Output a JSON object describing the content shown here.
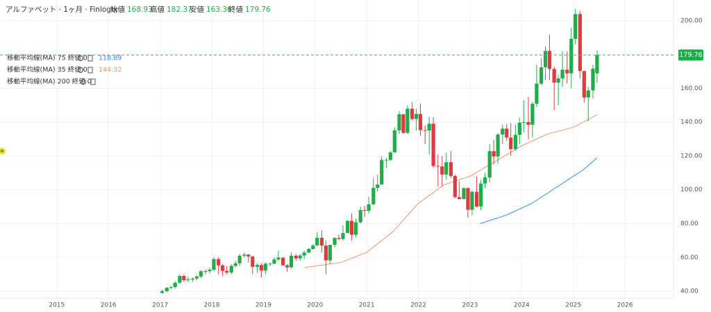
{
  "chart_data": {
    "type": "candlestick",
    "header": {
      "name": "アルファベット · 1ヶ月 · Finlogix",
      "open_label": "始値",
      "high_label": "高値",
      "low_label": "安値",
      "close_label": "終値"
    },
    "marker_label": "w",
    "xlim": [
      2013.9,
      2026.94
    ],
    "xticks": [
      2015,
      2016,
      2017,
      2018,
      2019,
      2020,
      2021,
      2022,
      2023,
      2024,
      2025,
      2026
    ],
    "ylim": [
      35.9,
      212.3
    ],
    "yticks": [
      {
        "value": 40,
        "label": "40.00"
      },
      {
        "value": 60,
        "label": "60.00"
      },
      {
        "value": 80,
        "label": "80.00"
      },
      {
        "value": 100,
        "label": "100.00"
      },
      {
        "value": 120,
        "label": "120.00"
      },
      {
        "value": 140,
        "label": "140.00"
      },
      {
        "value": 160,
        "label": "160.00"
      },
      {
        "value": 180,
        "label": "180.00"
      },
      {
        "value": 200,
        "label": "200.00"
      }
    ],
    "grid": true,
    "up_color": "#22ab4a",
    "down_color": "#e0393e",
    "candles": {
      "x": [
        2017.04,
        2017.13,
        2017.21,
        2017.29,
        2017.38,
        2017.46,
        2017.54,
        2017.63,
        2017.71,
        2017.79,
        2017.88,
        2017.96,
        2018.04,
        2018.13,
        2018.21,
        2018.29,
        2018.38,
        2018.46,
        2018.54,
        2018.63,
        2018.71,
        2018.79,
        2018.88,
        2018.96,
        2019.04,
        2019.13,
        2019.21,
        2019.29,
        2019.38,
        2019.46,
        2019.54,
        2019.63,
        2019.71,
        2019.79,
        2019.88,
        2019.96,
        2020.04,
        2020.13,
        2020.21,
        2020.29,
        2020.38,
        2020.46,
        2020.54,
        2020.63,
        2020.71,
        2020.79,
        2020.88,
        2020.96,
        2021.04,
        2021.13,
        2021.21,
        2021.29,
        2021.38,
        2021.46,
        2021.54,
        2021.63,
        2021.71,
        2021.79,
        2021.88,
        2021.96,
        2022.04,
        2022.13,
        2022.21,
        2022.29,
        2022.38,
        2022.46,
        2022.54,
        2022.63,
        2022.71,
        2022.79,
        2022.88,
        2022.96,
        2023.04,
        2023.13,
        2023.21,
        2023.29,
        2023.38,
        2023.46,
        2023.54,
        2023.63,
        2023.71,
        2023.79,
        2023.88,
        2023.96,
        2024.04,
        2024.13,
        2024.21,
        2024.29,
        2024.38,
        2024.46,
        2024.54,
        2024.63,
        2024.71,
        2024.79,
        2024.88,
        2024.96,
        2025.04,
        2025.13,
        2025.21,
        2025.29,
        2025.38,
        2025.46
      ],
      "open": [
        39,
        40,
        42,
        42.5,
        45,
        49,
        46.5,
        47,
        47.5,
        48.7,
        51.8,
        51.9,
        52.7,
        59,
        55.3,
        52,
        51,
        55,
        56.5,
        61,
        61.7,
        60.5,
        54.4,
        55.5,
        52.2,
        56.3,
        56.3,
        58.8,
        59.9,
        55.3,
        54.1,
        61,
        59.4,
        61.1,
        62.9,
        65,
        67,
        71.6,
        67,
        58.2,
        67.4,
        71.5,
        70.9,
        74.4,
        81.6,
        73.4,
        80.8,
        88,
        87.6,
        91.4,
        101.1,
        103.1,
        117.7,
        117.7,
        122.1,
        135.2,
        144.7,
        133.7,
        148,
        141.9,
        144.9,
        135.3,
        135.1,
        139.1,
        114.1,
        113.8,
        109,
        116.3,
        108.2,
        95.7,
        94.5,
        100.99,
        88.2,
        98.8,
        90.1,
        103.7,
        107.3,
        122.9,
        119.7,
        132.7,
        136.2,
        130.9,
        124.1,
        132.5,
        139.7,
        140.1,
        138.5,
        150.9,
        162.8,
        172.5,
        182.2,
        171.5,
        163.4,
        165.9,
        171.1,
        168.9,
        189.3,
        204,
        170.3,
        154.6,
        158.8,
        168.93
      ],
      "high": [
        41,
        42.5,
        43,
        46,
        50,
        50,
        48.5,
        48,
        49.5,
        52.5,
        53,
        54,
        60,
        60,
        56,
        55,
        56,
        58,
        62,
        63,
        62,
        61,
        56.5,
        56.5,
        57,
        57,
        60,
        64,
        59.5,
        56,
        63,
        62,
        62,
        64,
        65.5,
        68,
        75,
        76,
        70,
        67.5,
        72,
        73.5,
        79,
        82,
        86,
        83,
        90,
        90.5,
        96,
        107,
        109,
        120,
        119,
        123,
        137,
        146.5,
        142,
        150,
        152,
        148,
        151,
        138,
        143,
        143,
        121,
        120,
        122,
        123,
        109,
        105,
        101.5,
        101.5,
        99.5,
        108,
        106,
        110,
        127,
        129.5,
        133.5,
        138.5,
        139,
        139.5,
        138.5,
        142.5,
        153,
        155,
        152,
        174,
        178,
        185,
        191.75,
        173,
        168,
        182,
        182,
        196,
        207,
        206,
        170,
        161,
        174,
        182.37
      ],
      "low": [
        38.5,
        39.5,
        41,
        41.5,
        44.5,
        45.5,
        45.5,
        45.5,
        46.5,
        47.8,
        50,
        50.5,
        52,
        50,
        49,
        50,
        50,
        54,
        55,
        60,
        57,
        50,
        51,
        48,
        50,
        55,
        56,
        58,
        55,
        51.5,
        53.5,
        58,
        58,
        59,
        62.5,
        64.5,
        67,
        63,
        50,
        56,
        66,
        70,
        70,
        74.5,
        70,
        72,
        80,
        84,
        86,
        91,
        99,
        103,
        113,
        117,
        122,
        133,
        133,
        133,
        141,
        135,
        132,
        127,
        121,
        113,
        102,
        102,
        106,
        107,
        95,
        95,
        95,
        83.5,
        84.9,
        89.5,
        88,
        101,
        104.5,
        115,
        115.5,
        127,
        129,
        120,
        123,
        127,
        134,
        130,
        131,
        149,
        162,
        165,
        165,
        147.2,
        150,
        161,
        163,
        160,
        186,
        166,
        151.5,
        140.5,
        154,
        163.36
      ],
      "close": [
        40,
        42,
        42.5,
        45,
        49,
        46.5,
        47,
        47.5,
        48.7,
        51.8,
        51.9,
        52.7,
        59,
        55.3,
        52,
        51,
        55,
        56.5,
        61,
        61.7,
        60.5,
        54.4,
        55.5,
        52.2,
        56.3,
        56.3,
        58.8,
        59.9,
        55.3,
        54.1,
        61,
        59.4,
        61.1,
        62.9,
        65,
        67,
        71.6,
        67,
        58.2,
        67.4,
        71.5,
        70.9,
        74.4,
        81.6,
        73.4,
        80.8,
        88,
        87.6,
        91.4,
        101.1,
        103.1,
        117.7,
        117.7,
        122.1,
        135.2,
        144.7,
        133.7,
        148,
        141.9,
        144.9,
        135.3,
        135.1,
        139.1,
        114.1,
        113.8,
        109,
        116.3,
        108.2,
        95.7,
        94.5,
        100.99,
        88.2,
        98.8,
        90.1,
        103.7,
        107.3,
        122.9,
        119.7,
        132.7,
        136.2,
        130.9,
        124.1,
        132.5,
        139.7,
        140.1,
        138.5,
        150.9,
        162.8,
        172.5,
        182.2,
        171.5,
        163.4,
        165.9,
        171.1,
        168.9,
        189.3,
        204,
        170.3,
        154.6,
        158.8,
        171.7,
        179.76
      ]
    },
    "series": [
      {
        "name": "移動平均線(MA) 75 終値 0",
        "color": "#2a8fd6",
        "x": [
          2023.2,
          2023.7,
          2024.2,
          2024.7,
          2025.2,
          2025.46
        ],
        "values": [
          80,
          85,
          92,
          102,
          112,
          118.89
        ]
      },
      {
        "name": "移動平均線(MA) 35 終値 0",
        "color": "#e8956a",
        "x": [
          2019.8,
          2020.5,
          2021.0,
          2021.5,
          2022.0,
          2022.5,
          2023.0,
          2023.5,
          2024.0,
          2024.5,
          2025.0,
          2025.46
        ],
        "values": [
          54,
          57,
          63,
          75,
          92,
          103,
          108,
          117,
          126,
          133,
          137,
          144.32
        ]
      },
      {
        "name": "移動平均線(MA) 200 終値 0",
        "color": "#888888",
        "x": [],
        "values": []
      }
    ]
  }
}
